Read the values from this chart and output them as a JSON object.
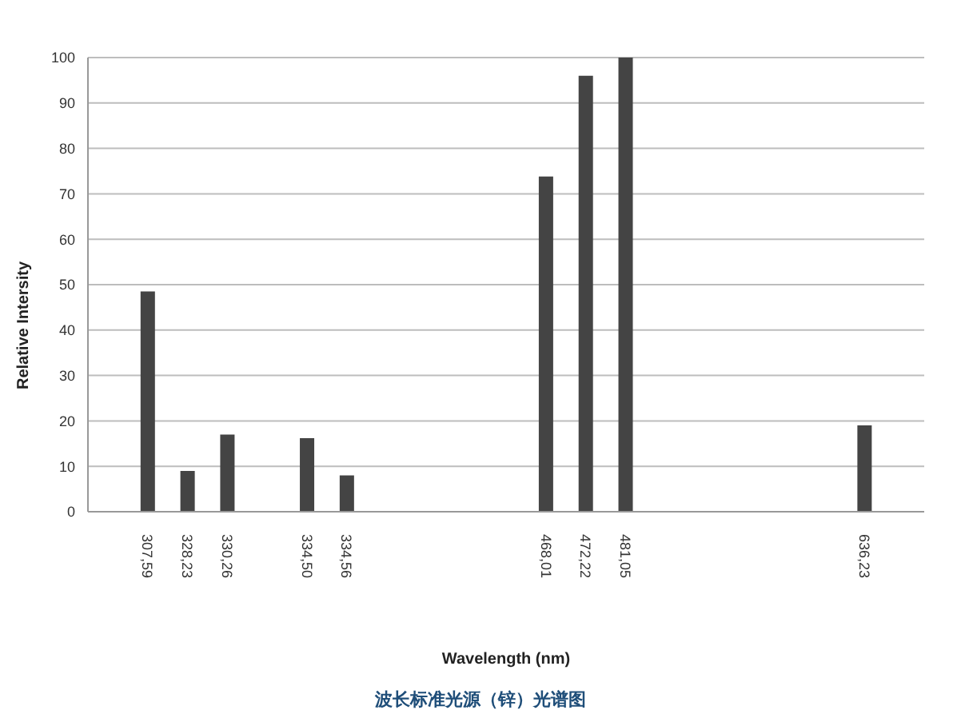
{
  "chart_data": {
    "type": "bar",
    "title": "波长标准光源（锌）光谱图",
    "xlabel": "Wavelength (nm)",
    "ylabel": "Relative Intersity",
    "categories": [
      null,
      "307,59",
      "328,23",
      "330,26",
      null,
      "334,50",
      "334,56",
      null,
      null,
      null,
      null,
      "468,01",
      "472,22",
      "481,05",
      null,
      null,
      null,
      null,
      null,
      "636,23",
      null
    ],
    "values": [
      null,
      48.5,
      9,
      17,
      null,
      16.2,
      8,
      null,
      null,
      null,
      null,
      73.8,
      96,
      100,
      null,
      null,
      null,
      null,
      null,
      19,
      null
    ],
    "color": "#444444",
    "ylim": [
      0,
      100
    ],
    "yticks": [
      0,
      10,
      20,
      30,
      40,
      50,
      60,
      70,
      80,
      90,
      100
    ],
    "grid": "y"
  }
}
